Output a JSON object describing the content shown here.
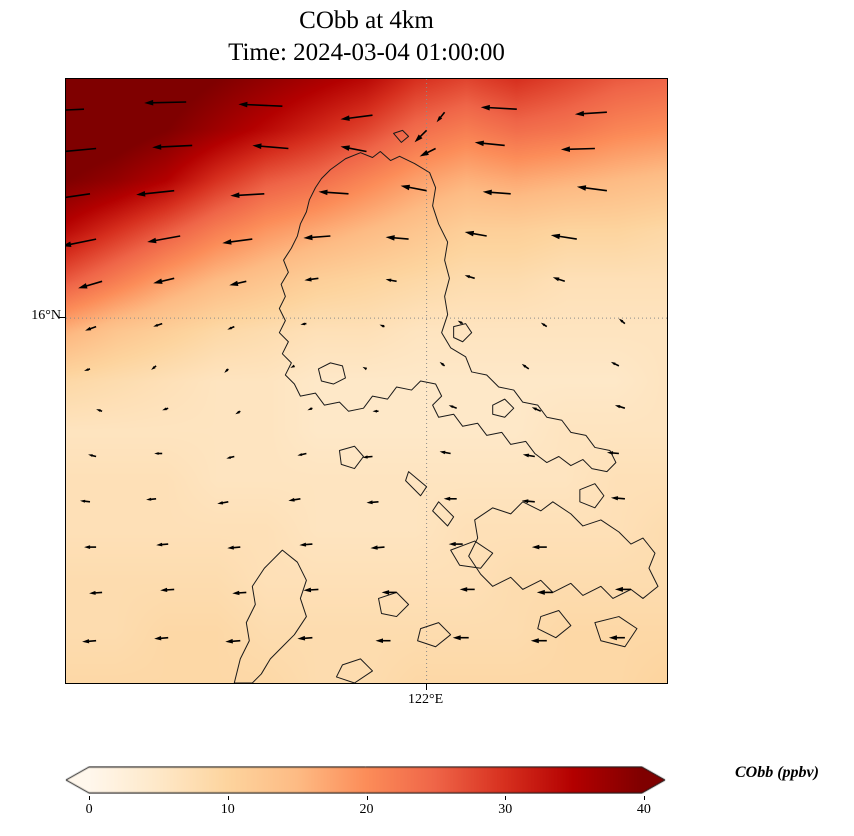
{
  "figure": {
    "title_line1": "CObb at 4km",
    "title_line2": "Time: 2024-03-04 01:00:00"
  },
  "axes": {
    "y_tick": {
      "label": "16°N",
      "frac": 0.396
    },
    "x_tick": {
      "label": "122°E",
      "frac": 0.6
    }
  },
  "colorbar": {
    "label": "CObb (ppbv)",
    "ticks": [
      "0",
      "10",
      "20",
      "30",
      "40"
    ],
    "vmin": 0,
    "vmax": 40,
    "extend": "both"
  },
  "chart_data": {
    "type": "heatmap",
    "title": "CObb at 4km",
    "subtitle": "Time: 2024-03-04 01:00:00",
    "variable": "CObb",
    "units": "ppbv",
    "level": "4km",
    "vmin": 0,
    "vmax": 40,
    "colormap": {
      "name": "OrRd",
      "stops": [
        [
          0.0,
          "#fff7ec"
        ],
        [
          0.125,
          "#fee8c8"
        ],
        [
          0.25,
          "#fdd49e"
        ],
        [
          0.375,
          "#fdbb84"
        ],
        [
          0.5,
          "#fc8d59"
        ],
        [
          0.625,
          "#ef6548"
        ],
        [
          0.75,
          "#d7301f"
        ],
        [
          0.875,
          "#b30000"
        ],
        [
          1.0,
          "#7f0000"
        ]
      ]
    },
    "gridlines": {
      "x_frac": 0.6,
      "y_frac": 0.396,
      "x_label": "122°E",
      "y_label": "16°N"
    },
    "grid": {
      "rows": 13,
      "cols": 13,
      "values": [
        [
          44,
          43,
          42,
          40,
          38,
          36,
          34,
          30,
          28,
          30,
          28,
          26,
          25
        ],
        [
          43,
          42,
          40,
          37,
          34,
          31,
          28,
          24,
          22,
          24,
          23,
          21,
          20
        ],
        [
          40,
          38,
          35,
          30,
          26,
          24,
          21,
          18,
          16,
          17,
          16,
          15,
          14
        ],
        [
          34,
          30,
          26,
          22,
          19,
          17,
          15,
          13,
          11,
          11,
          10,
          10,
          9
        ],
        [
          26,
          22,
          18,
          15,
          13,
          11,
          10,
          9,
          8,
          8,
          7,
          7,
          7
        ],
        [
          16,
          13,
          11,
          9,
          8,
          7,
          7,
          6,
          6,
          6,
          6,
          6,
          6
        ],
        [
          9,
          8,
          7,
          6,
          6,
          5,
          5,
          5,
          5,
          5,
          5,
          5,
          6
        ],
        [
          6,
          6,
          6,
          6,
          6,
          5,
          5,
          5,
          5,
          5,
          6,
          6,
          6
        ],
        [
          7,
          7,
          7,
          6,
          6,
          6,
          6,
          6,
          6,
          6,
          6,
          7,
          7
        ],
        [
          7,
          7,
          7,
          7,
          7,
          6,
          6,
          6,
          7,
          7,
          7,
          7,
          8
        ],
        [
          8,
          8,
          8,
          8,
          7,
          7,
          7,
          7,
          7,
          8,
          8,
          8,
          8
        ],
        [
          8,
          8,
          9,
          9,
          8,
          8,
          8,
          8,
          8,
          8,
          9,
          9,
          9
        ],
        [
          9,
          9,
          9,
          9,
          9,
          8,
          8,
          9,
          9,
          9,
          9,
          9,
          10
        ]
      ]
    },
    "quiver": {
      "arrows": [
        [
          0.03,
          0.05,
          -44,
          2
        ],
        [
          0.2,
          0.038,
          -42,
          1
        ],
        [
          0.36,
          0.045,
          -44,
          -2
        ],
        [
          0.51,
          0.06,
          -32,
          4
        ],
        [
          0.6,
          0.085,
          -12,
          12
        ],
        [
          0.63,
          0.055,
          -8,
          10
        ],
        [
          0.75,
          0.05,
          -36,
          -2
        ],
        [
          0.9,
          0.055,
          -32,
          2
        ],
        [
          0.05,
          0.115,
          -42,
          4
        ],
        [
          0.21,
          0.11,
          -40,
          2
        ],
        [
          0.37,
          0.115,
          -36,
          -3
        ],
        [
          0.5,
          0.12,
          -26,
          -5
        ],
        [
          0.615,
          0.115,
          -16,
          8
        ],
        [
          0.73,
          0.11,
          -30,
          -3
        ],
        [
          0.88,
          0.115,
          -34,
          1
        ],
        [
          0.04,
          0.19,
          -40,
          6
        ],
        [
          0.18,
          0.185,
          -38,
          4
        ],
        [
          0.33,
          0.19,
          -34,
          2
        ],
        [
          0.47,
          0.19,
          -30,
          -2
        ],
        [
          0.6,
          0.185,
          -26,
          -5
        ],
        [
          0.74,
          0.19,
          -28,
          -2
        ],
        [
          0.9,
          0.185,
          -30,
          -4
        ],
        [
          0.05,
          0.265,
          -34,
          7
        ],
        [
          0.19,
          0.26,
          -33,
          6
        ],
        [
          0.31,
          0.265,
          -30,
          4
        ],
        [
          0.44,
          0.26,
          -27,
          2
        ],
        [
          0.57,
          0.265,
          -23,
          -2
        ],
        [
          0.7,
          0.26,
          -22,
          -4
        ],
        [
          0.85,
          0.265,
          -26,
          -4
        ],
        [
          0.06,
          0.335,
          -24,
          7
        ],
        [
          0.18,
          0.33,
          -21,
          5
        ],
        [
          0.3,
          0.335,
          -17,
          4
        ],
        [
          0.42,
          0.33,
          -14,
          2
        ],
        [
          0.55,
          0.335,
          -11,
          -2
        ],
        [
          0.68,
          0.33,
          -10,
          -3
        ],
        [
          0.83,
          0.335,
          -12,
          -4
        ],
        [
          0.05,
          0.41,
          -11,
          4
        ],
        [
          0.16,
          0.405,
          -9,
          3
        ],
        [
          0.28,
          0.41,
          -7,
          3
        ],
        [
          0.4,
          0.405,
          -6,
          1
        ],
        [
          0.53,
          0.41,
          -5,
          -2
        ],
        [
          0.66,
          0.405,
          -5,
          -3
        ],
        [
          0.8,
          0.41,
          -6,
          -4
        ],
        [
          0.93,
          0.405,
          -6,
          -5
        ],
        [
          0.04,
          0.48,
          -6,
          2
        ],
        [
          0.15,
          0.475,
          -5,
          4
        ],
        [
          0.27,
          0.48,
          -4,
          4
        ],
        [
          0.38,
          0.475,
          -4,
          2
        ],
        [
          0.5,
          0.48,
          -4,
          -2
        ],
        [
          0.63,
          0.475,
          -5,
          -4
        ],
        [
          0.77,
          0.48,
          -7,
          -5
        ],
        [
          0.92,
          0.475,
          -8,
          -4
        ],
        [
          0.06,
          0.55,
          -6,
          -2
        ],
        [
          0.17,
          0.545,
          -6,
          2
        ],
        [
          0.29,
          0.55,
          -5,
          3
        ],
        [
          0.41,
          0.545,
          -5,
          2
        ],
        [
          0.52,
          0.55,
          -6,
          0
        ],
        [
          0.65,
          0.545,
          -8,
          -3
        ],
        [
          0.79,
          0.55,
          -9,
          -4
        ],
        [
          0.93,
          0.545,
          -10,
          -3
        ],
        [
          0.05,
          0.625,
          -8,
          -2
        ],
        [
          0.16,
          0.62,
          -8,
          0
        ],
        [
          0.28,
          0.625,
          -8,
          2
        ],
        [
          0.4,
          0.62,
          -9,
          2
        ],
        [
          0.51,
          0.625,
          -10,
          1
        ],
        [
          0.64,
          0.62,
          -11,
          -2
        ],
        [
          0.78,
          0.625,
          -12,
          -2
        ],
        [
          0.92,
          0.62,
          -12,
          -1
        ],
        [
          0.04,
          0.7,
          -10,
          -1
        ],
        [
          0.15,
          0.695,
          -10,
          1
        ],
        [
          0.27,
          0.7,
          -11,
          2
        ],
        [
          0.39,
          0.695,
          -12,
          2
        ],
        [
          0.52,
          0.7,
          -12,
          1
        ],
        [
          0.65,
          0.695,
          -13,
          0
        ],
        [
          0.78,
          0.7,
          -13,
          -1
        ],
        [
          0.93,
          0.695,
          -14,
          -1
        ],
        [
          0.05,
          0.775,
          -12,
          0
        ],
        [
          0.17,
          0.77,
          -12,
          1
        ],
        [
          0.29,
          0.775,
          -13,
          1
        ],
        [
          0.41,
          0.77,
          -13,
          1
        ],
        [
          0.53,
          0.775,
          -14,
          1
        ],
        [
          0.66,
          0.77,
          -14,
          0
        ],
        [
          0.8,
          0.775,
          -15,
          0
        ],
        [
          0.06,
          0.85,
          -13,
          1
        ],
        [
          0.18,
          0.845,
          -14,
          1
        ],
        [
          0.3,
          0.85,
          -14,
          1
        ],
        [
          0.42,
          0.845,
          -15,
          1
        ],
        [
          0.55,
          0.85,
          -15,
          0
        ],
        [
          0.68,
          0.845,
          -15,
          0
        ],
        [
          0.81,
          0.85,
          -16,
          0
        ],
        [
          0.94,
          0.845,
          -16,
          0
        ],
        [
          0.05,
          0.93,
          -14,
          1
        ],
        [
          0.17,
          0.925,
          -14,
          1
        ],
        [
          0.29,
          0.93,
          -15,
          1
        ],
        [
          0.41,
          0.925,
          -15,
          1
        ],
        [
          0.54,
          0.93,
          -15,
          0
        ],
        [
          0.67,
          0.925,
          -16,
          0
        ],
        [
          0.8,
          0.93,
          -16,
          0
        ],
        [
          0.93,
          0.925,
          -16,
          0
        ]
      ]
    },
    "coastline_paths": [
      "M 44,15 L 46.5,13.2 L 49,12.2 L 51,13 L 52.3,12 L 54,13.5 L 55.5,12.8 L 58,14 L 60.5,15.5 L 61.5,18 L 61,21 L 62,24 L 63.5,27 L 63,30 L 63.8,33 L 63,36 L 63.5,39 L 62.5,42 L 64,44.5 L 66.5,46 L 67.5,48.5 L 70,49 L 72,51 L 74.5,51.5 L 76,53.5 L 78.5,54 L 80,56 L 82.5,56.5 L 84,58.5 L 86.5,59 L 88,61 L 90.5,61.5 L 91.5,63.5 L 90,65 L 87.5,64.5 L 86,63 L 84,64 L 82,62.5 L 80,63.5 L 78,62 L 76.5,60 L 74,60.5 L 72.5,58.5 L 70,59 L 68.5,57 L 66,57.5 L 64.5,55.5 L 62,56 L 61,54 L 62.5,52.5 L 61.5,50.5 L 59,50 L 57.5,51.5 L 55,51 L 53.5,53 L 51,52.5 L 49.5,54.5 L 47,55 L 45.5,53.5 L 43,54 L 41.5,52 L 39,52.5 L 38,50.5 L 36.5,49 L 37.5,47 L 36,45.5 L 37,43.5 L 35.5,42 L 36.5,40 L 35.5,38 L 36.5,36 L 35.8,34 L 37,32 L 36.2,30 L 37.5,28 L 38.5,26 L 39,24 L 40,22 L 40.5,20 L 41.5,18 L 42.5,16.5 Z",
      "M 42,48 L 44,47 L 46,47.5 L 46.5,49.5 L 44.5,50.5 L 42.5,50 Z",
      "M 64.5,41 L 66.5,40.5 L 67.5,42 L 66,43.5 L 64.5,42.8 Z",
      "M 85.5,68 L 88,67 L 89.5,69 L 88,71 L 85.5,70 Z",
      "M 45.5,61.5 L 48,60.8 L 49.5,62.5 L 48,64.5 L 45.8,63.8 Z",
      "M 57,65 L 60,67.5 L 59,69 L 56.5,66.5 Z",
      "M 62,70 L 64.5,72.5 L 63.5,74 L 61,71.5 Z",
      "M 64,78 L 68,76.5 L 71,78.5 L 69,81 L 65.5,80.5 Z",
      "M 36,78 L 38.5,80 L 40,83 L 39,86 L 40,89 L 38,92 L 36,94 L 34,96 L 32.5,98.5 L 31,100 L 28,100 L 29,96 L 30.5,93 L 30,90 L 31.5,87 L 31,84 L 33,81 Z",
      "M 68,73 L 71,71 L 74,72 L 76,70 L 79,71.5 L 81,70 L 84,72 L 86,74 L 89,73 L 92,75 L 94,77 L 96,76 L 98,78.5 L 97,81 L 98.5,84 L 96,86 L 94,84.5 L 91,86 L 89,84 L 86,85.5 L 84,83.5 L 81,85 L 79,83 L 76,84.5 L 74,82.5 L 71,84 L 69,82 L 67,79 L 68.5,76 Z",
      "M 88,90 L 92,89 L 95,91 L 93,94 L 89,93 Z M 79,89 L 82,88 L 84,90.5 L 81.5,92.5 L 78.5,91 Z M 52,86 L 55,85 L 57,87 L 55,89 L 52.5,88.5 Z M 59,91 L 62,90 L 64,92 L 61.5,94 L 58.5,93 Z M 46,97 L 49,96 L 51,98 L 48,100 L 45,99 Z M 71,54 L 73,53 L 74.5,54.5 L 73,56 L 71,55.5 Z M 54.5,9 L 56,8.5 L 57,9.5 L 55.8,10.5 Z"
    ]
  }
}
